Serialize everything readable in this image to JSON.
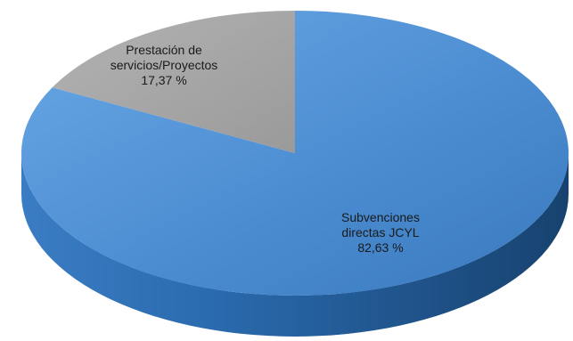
{
  "chart_data": {
    "type": "pie",
    "style": "3d",
    "title": "",
    "slices": [
      {
        "label_lines": [
          "Subvenciones",
          "directas JCYL"
        ],
        "value": 82.63,
        "value_label": "82,63 %",
        "color": "#4f93d6",
        "side_color": "#2b66a6"
      },
      {
        "label_lines": [
          "Prestación de",
          "servicios/Proyectos"
        ],
        "value": 17.37,
        "value_label": "17,37 %",
        "color": "#a8a8a8",
        "side_color": "#7a7a7a"
      }
    ],
    "legend": "none"
  }
}
